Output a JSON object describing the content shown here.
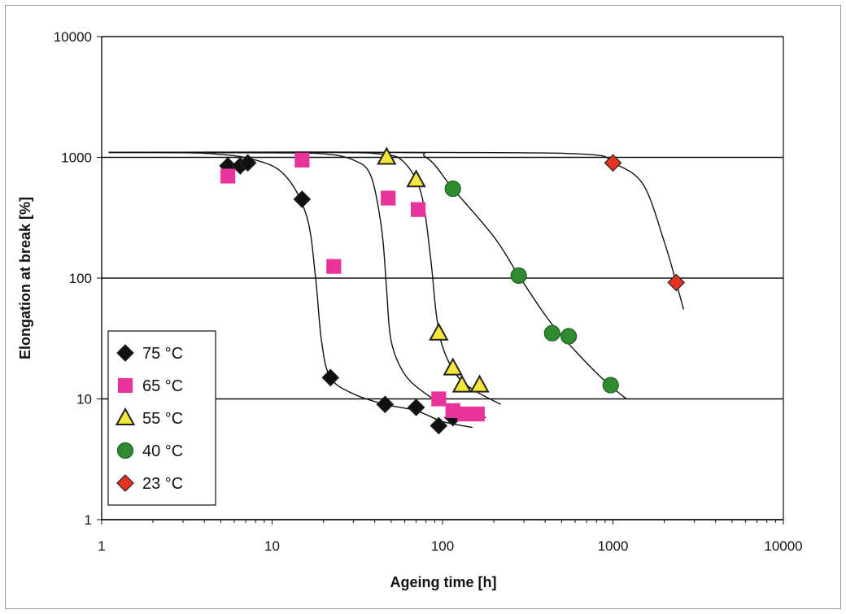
{
  "chart_data": {
    "type": "scatter",
    "xlabel": "Ageing time [h]",
    "ylabel": "Elongation at break [%]",
    "x_scale": "log",
    "y_scale": "log",
    "xlim": [
      1,
      10000
    ],
    "ylim": [
      1,
      10000
    ],
    "x_ticks": [
      "1",
      "10",
      "100",
      "1000",
      "10000"
    ],
    "y_ticks": [
      "1",
      "10",
      "100",
      "1000",
      "10000"
    ],
    "grid": "horizontal major lines",
    "legend_position": "bottom-left",
    "series": [
      {
        "name": "75 °C",
        "marker": "diamond",
        "color": "#111111",
        "points": [
          [
            5.5,
            850
          ],
          [
            6.5,
            850
          ],
          [
            7.2,
            900
          ],
          [
            15,
            450
          ],
          [
            22,
            15
          ],
          [
            46,
            9
          ],
          [
            70,
            8.5
          ],
          [
            95,
            6
          ],
          [
            115,
            7
          ]
        ],
        "fit": [
          [
            1.1,
            1100
          ],
          [
            4,
            1080
          ],
          [
            8,
            950
          ],
          [
            12,
            700
          ],
          [
            16,
            320
          ],
          [
            18,
            100
          ],
          [
            19.5,
            30
          ],
          [
            22,
            15
          ],
          [
            30,
            11
          ],
          [
            46,
            9
          ],
          [
            70,
            8
          ],
          [
            100,
            6.5
          ],
          [
            150,
            5.8
          ]
        ]
      },
      {
        "name": "65 °C",
        "marker": "square",
        "color": "#e8339a",
        "points": [
          [
            5.5,
            700
          ],
          [
            15,
            950
          ],
          [
            23,
            125
          ],
          [
            48,
            460
          ],
          [
            72,
            370
          ],
          [
            95,
            10
          ],
          [
            115,
            8
          ],
          [
            135,
            7.5
          ],
          [
            160,
            7.5
          ]
        ],
        "fit": [
          [
            1.1,
            1100
          ],
          [
            10,
            1090
          ],
          [
            20,
            1070
          ],
          [
            30,
            950
          ],
          [
            38,
            700
          ],
          [
            44,
            250
          ],
          [
            47,
            80
          ],
          [
            50,
            30
          ],
          [
            60,
            16
          ],
          [
            80,
            11
          ],
          [
            110,
            8.5
          ],
          [
            140,
            7.8
          ],
          [
            180,
            7
          ]
        ]
      },
      {
        "name": "55 °C",
        "marker": "triangle",
        "color": "#f5e63a",
        "points": [
          [
            47,
            1000
          ],
          [
            70,
            650
          ],
          [
            95,
            35
          ],
          [
            115,
            18
          ],
          [
            130,
            13
          ],
          [
            165,
            13
          ]
        ],
        "fit": [
          [
            1.1,
            1100
          ],
          [
            20,
            1100
          ],
          [
            45,
            1060
          ],
          [
            60,
            900
          ],
          [
            75,
            500
          ],
          [
            85,
            150
          ],
          [
            92,
            50
          ],
          [
            100,
            27
          ],
          [
            120,
            16
          ],
          [
            150,
            12
          ],
          [
            220,
            9
          ]
        ]
      },
      {
        "name": "40 °C",
        "marker": "circle",
        "color": "#2e8b30",
        "points": [
          [
            115,
            550
          ],
          [
            280,
            105
          ],
          [
            440,
            35
          ],
          [
            550,
            33
          ],
          [
            970,
            13
          ]
        ],
        "fit": [
          [
            1.1,
            1100
          ],
          [
            50,
            1100
          ],
          [
            80,
            1000
          ],
          [
            115,
            550
          ],
          [
            200,
            220
          ],
          [
            280,
            105
          ],
          [
            420,
            45
          ],
          [
            600,
            25
          ],
          [
            900,
            14
          ],
          [
            1200,
            10
          ]
        ]
      },
      {
        "name": "23 °C",
        "marker": "diamond",
        "color": "#e53222",
        "points": [
          [
            1000,
            900
          ],
          [
            2350,
            92
          ]
        ],
        "fit": [
          [
            1.1,
            1100
          ],
          [
            100,
            1100
          ],
          [
            700,
            1060
          ],
          [
            1000,
            900
          ],
          [
            1500,
            600
          ],
          [
            2000,
            200
          ],
          [
            2350,
            92
          ],
          [
            2600,
            55
          ]
        ]
      }
    ]
  }
}
